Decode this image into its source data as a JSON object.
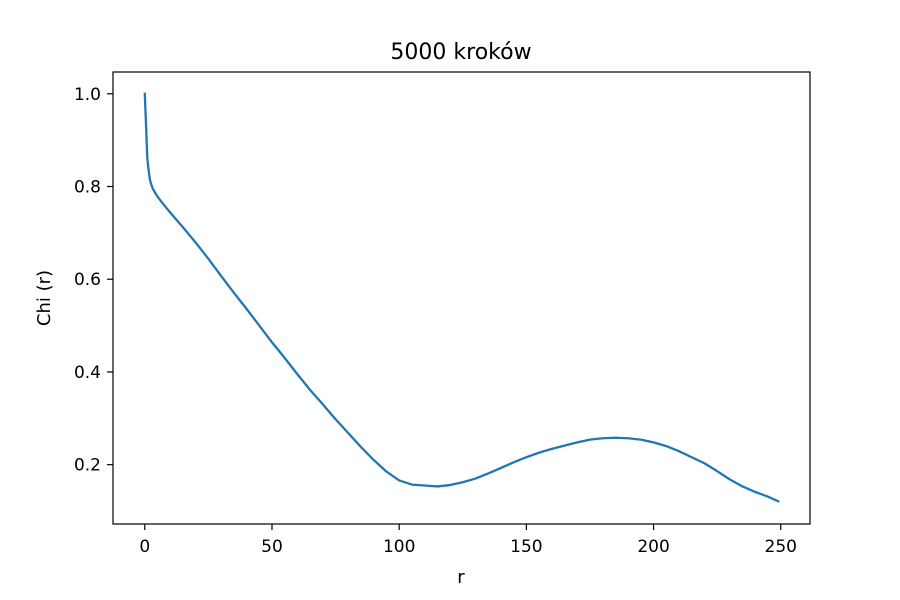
{
  "chart_data": {
    "type": "line",
    "title": "5000 kroków",
    "xlabel": "r",
    "ylabel": "Chi (r)",
    "xlim": [
      -12.5,
      261.5
    ],
    "ylim": [
      0.072,
      1.047
    ],
    "xticks": [
      0,
      50,
      100,
      150,
      200,
      250
    ],
    "xtick_labels": [
      "0",
      "50",
      "100",
      "150",
      "200",
      "250"
    ],
    "yticks": [
      0.2,
      0.4,
      0.6,
      0.8,
      1.0
    ],
    "ytick_labels": [
      "0.2",
      "0.4",
      "0.6",
      "0.8",
      "1.0"
    ],
    "grid": false,
    "series": [
      {
        "color": "#1f77b4",
        "x": [
          0,
          0.5,
          1,
          1.5,
          2,
          2.5,
          3,
          4,
          5,
          6,
          7,
          8,
          10,
          12,
          15,
          20,
          25,
          30,
          35,
          40,
          45,
          50,
          55,
          60,
          65,
          70,
          75,
          80,
          85,
          90,
          95,
          100,
          105,
          110,
          115,
          120,
          125,
          130,
          135,
          140,
          145,
          150,
          155,
          160,
          165,
          170,
          175,
          180,
          185,
          190,
          195,
          200,
          205,
          210,
          215,
          220,
          225,
          230,
          235,
          240,
          245,
          249
        ],
        "y": [
          1.0,
          0.93,
          0.86,
          0.835,
          0.815,
          0.805,
          0.797,
          0.787,
          0.778,
          0.771,
          0.764,
          0.757,
          0.744,
          0.731,
          0.712,
          0.679,
          0.644,
          0.607,
          0.571,
          0.536,
          0.5,
          0.464,
          0.43,
          0.395,
          0.361,
          0.33,
          0.298,
          0.268,
          0.238,
          0.21,
          0.185,
          0.166,
          0.157,
          0.155,
          0.153,
          0.156,
          0.162,
          0.17,
          0.181,
          0.193,
          0.205,
          0.216,
          0.226,
          0.234,
          0.241,
          0.248,
          0.254,
          0.257,
          0.258,
          0.257,
          0.254,
          0.248,
          0.24,
          0.229,
          0.216,
          0.203,
          0.186,
          0.168,
          0.153,
          0.141,
          0.131,
          0.121
        ]
      }
    ]
  }
}
